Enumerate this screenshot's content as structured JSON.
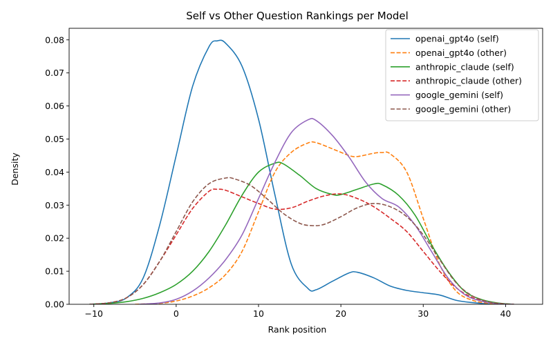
{
  "chart_data": {
    "type": "line",
    "title": "Self vs Other Question Rankings per Model",
    "xlabel": "Rank position",
    "ylabel": "Density",
    "xlim": [
      -13,
      44.5
    ],
    "ylim": [
      0,
      0.0835
    ],
    "xticks": [
      -10,
      0,
      10,
      20,
      30,
      40
    ],
    "xtick_labels": [
      "−10",
      "0",
      "10",
      "20",
      "30",
      "40"
    ],
    "yticks": [
      0.0,
      0.01,
      0.02,
      0.03,
      0.04,
      0.05,
      0.06,
      0.07,
      0.08
    ],
    "ytick_labels": [
      "0.00",
      "0.01",
      "0.02",
      "0.03",
      "0.04",
      "0.05",
      "0.06",
      "0.07",
      "0.08"
    ],
    "grid": false,
    "legend_position": "top-right",
    "series": [
      {
        "name": "openai_gpt4o (self)",
        "color": "#1f77b4",
        "dash": "solid",
        "points": [
          [
            -10.5,
            0
          ],
          [
            -8,
            0.0005
          ],
          [
            -6,
            0.002
          ],
          [
            -4,
            0.008
          ],
          [
            -2,
            0.024
          ],
          [
            0,
            0.045
          ],
          [
            2,
            0.066
          ],
          [
            4,
            0.078
          ],
          [
            5,
            0.0797
          ],
          [
            6,
            0.079
          ],
          [
            8,
            0.072
          ],
          [
            10,
            0.056
          ],
          [
            12,
            0.033
          ],
          [
            14,
            0.012
          ],
          [
            16,
            0.0048
          ],
          [
            17,
            0.0044
          ],
          [
            19,
            0.007
          ],
          [
            21,
            0.0095
          ],
          [
            22,
            0.0097
          ],
          [
            24,
            0.008
          ],
          [
            26,
            0.0055
          ],
          [
            28,
            0.0042
          ],
          [
            30,
            0.0035
          ],
          [
            32,
            0.0028
          ],
          [
            34,
            0.0012
          ],
          [
            36,
            0.0005
          ],
          [
            38,
            0.0001
          ],
          [
            40,
            0
          ]
        ]
      },
      {
        "name": "openai_gpt4o (other)",
        "color": "#ff7f0e",
        "dash": "dashed",
        "points": [
          [
            -5,
            0
          ],
          [
            -2,
            0.0003
          ],
          [
            0,
            0.001
          ],
          [
            2,
            0.0025
          ],
          [
            4,
            0.005
          ],
          [
            6,
            0.009
          ],
          [
            8,
            0.016
          ],
          [
            10,
            0.028
          ],
          [
            12,
            0.04
          ],
          [
            14,
            0.046
          ],
          [
            16,
            0.0488
          ],
          [
            17,
            0.0489
          ],
          [
            19,
            0.047
          ],
          [
            21,
            0.045
          ],
          [
            22,
            0.0447
          ],
          [
            24,
            0.0457
          ],
          [
            25,
            0.0459
          ],
          [
            26,
            0.0455
          ],
          [
            28,
            0.04
          ],
          [
            30,
            0.026
          ],
          [
            32,
            0.012
          ],
          [
            34,
            0.004
          ],
          [
            36,
            0.0012
          ],
          [
            38,
            0.0003
          ],
          [
            40,
            0
          ]
        ]
      },
      {
        "name": "anthropic_claude (self)",
        "color": "#2ca02c",
        "dash": "solid",
        "points": [
          [
            -10.5,
            0
          ],
          [
            -8,
            0.0003
          ],
          [
            -6,
            0.0008
          ],
          [
            -4,
            0.0018
          ],
          [
            -2,
            0.0035
          ],
          [
            0,
            0.006
          ],
          [
            2,
            0.01
          ],
          [
            4,
            0.016
          ],
          [
            6,
            0.024
          ],
          [
            8,
            0.033
          ],
          [
            10,
            0.04
          ],
          [
            12,
            0.0427
          ],
          [
            13,
            0.0425
          ],
          [
            15,
            0.039
          ],
          [
            17,
            0.035
          ],
          [
            19,
            0.0332
          ],
          [
            20,
            0.0332
          ],
          [
            22,
            0.0348
          ],
          [
            24,
            0.0364
          ],
          [
            25,
            0.0362
          ],
          [
            27,
            0.033
          ],
          [
            29,
            0.027
          ],
          [
            31,
            0.018
          ],
          [
            33,
            0.01
          ],
          [
            35,
            0.004
          ],
          [
            37,
            0.0015
          ],
          [
            39,
            0.0004
          ],
          [
            41,
            0
          ]
        ]
      },
      {
        "name": "anthropic_claude (other)",
        "color": "#d62728",
        "dash": "dashed",
        "points": [
          [
            -10.5,
            0
          ],
          [
            -8,
            0.0005
          ],
          [
            -6,
            0.002
          ],
          [
            -4,
            0.006
          ],
          [
            -2,
            0.013
          ],
          [
            0,
            0.021
          ],
          [
            2,
            0.029
          ],
          [
            4,
            0.0342
          ],
          [
            5,
            0.0348
          ],
          [
            6,
            0.0345
          ],
          [
            8,
            0.0325
          ],
          [
            10,
            0.0305
          ],
          [
            12,
            0.0288
          ],
          [
            14,
            0.0292
          ],
          [
            16,
            0.0312
          ],
          [
            18,
            0.0328
          ],
          [
            20,
            0.0334
          ],
          [
            22,
            0.032
          ],
          [
            24,
            0.0295
          ],
          [
            26,
            0.026
          ],
          [
            28,
            0.022
          ],
          [
            30,
            0.016
          ],
          [
            32,
            0.01
          ],
          [
            34,
            0.005
          ],
          [
            36,
            0.002
          ],
          [
            38,
            0.0006
          ],
          [
            40,
            0.0001
          ],
          [
            41,
            0
          ]
        ]
      },
      {
        "name": "google_gemini (self)",
        "color": "#9467bd",
        "dash": "solid",
        "points": [
          [
            -4.5,
            0
          ],
          [
            -2,
            0.0004
          ],
          [
            0,
            0.0015
          ],
          [
            2,
            0.004
          ],
          [
            4,
            0.008
          ],
          [
            6,
            0.0135
          ],
          [
            8,
            0.021
          ],
          [
            10,
            0.032
          ],
          [
            12,
            0.043
          ],
          [
            14,
            0.052
          ],
          [
            16,
            0.0558
          ],
          [
            17,
            0.0556
          ],
          [
            19,
            0.051
          ],
          [
            21,
            0.0445
          ],
          [
            23,
            0.037
          ],
          [
            25,
            0.032
          ],
          [
            27,
            0.0295
          ],
          [
            29,
            0.024
          ],
          [
            31,
            0.016
          ],
          [
            33,
            0.008
          ],
          [
            35,
            0.003
          ],
          [
            37,
            0.001
          ],
          [
            39,
            0.0002
          ],
          [
            41,
            0
          ]
        ]
      },
      {
        "name": "google_gemini (other)",
        "color": "#8c564b",
        "dash": "dashed",
        "points": [
          [
            -10.5,
            0
          ],
          [
            -8,
            0.0005
          ],
          [
            -6,
            0.002
          ],
          [
            -4,
            0.006
          ],
          [
            -2,
            0.013
          ],
          [
            0,
            0.022
          ],
          [
            2,
            0.031
          ],
          [
            4,
            0.0365
          ],
          [
            6,
            0.0382
          ],
          [
            7,
            0.038
          ],
          [
            9,
            0.036
          ],
          [
            11,
            0.032
          ],
          [
            13,
            0.0275
          ],
          [
            15,
            0.0245
          ],
          [
            16.5,
            0.0238
          ],
          [
            18,
            0.0242
          ],
          [
            20,
            0.0265
          ],
          [
            22,
            0.0292
          ],
          [
            24,
            0.0305
          ],
          [
            26,
            0.0295
          ],
          [
            28,
            0.0265
          ],
          [
            30,
            0.021
          ],
          [
            32,
            0.0135
          ],
          [
            34,
            0.0065
          ],
          [
            36,
            0.0025
          ],
          [
            38,
            0.0007
          ],
          [
            40,
            0.0001
          ],
          [
            41,
            0
          ]
        ]
      }
    ]
  }
}
